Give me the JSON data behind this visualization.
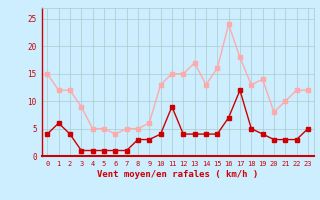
{
  "hours": [
    0,
    1,
    2,
    3,
    4,
    5,
    6,
    7,
    8,
    9,
    10,
    11,
    12,
    13,
    14,
    15,
    16,
    17,
    18,
    19,
    20,
    21,
    22,
    23
  ],
  "vent_moyen": [
    4,
    6,
    4,
    1,
    1,
    1,
    1,
    1,
    3,
    3,
    4,
    9,
    4,
    4,
    4,
    4,
    7,
    12,
    5,
    4,
    3,
    3,
    3,
    5
  ],
  "en_rafales": [
    15,
    12,
    12,
    9,
    5,
    5,
    4,
    5,
    5,
    6,
    13,
    15,
    15,
    17,
    13,
    16,
    24,
    18,
    13,
    14,
    8,
    10,
    12,
    12
  ],
  "xlabel": "Vent moyen/en rafales ( km/h )",
  "ylim": [
    0,
    27
  ],
  "yticks": [
    0,
    5,
    10,
    15,
    20,
    25
  ],
  "color_moyen": "#cc0000",
  "color_rafales": "#ffaaaa",
  "bg_color": "#cceeff",
  "grid_color": "#aacccc"
}
